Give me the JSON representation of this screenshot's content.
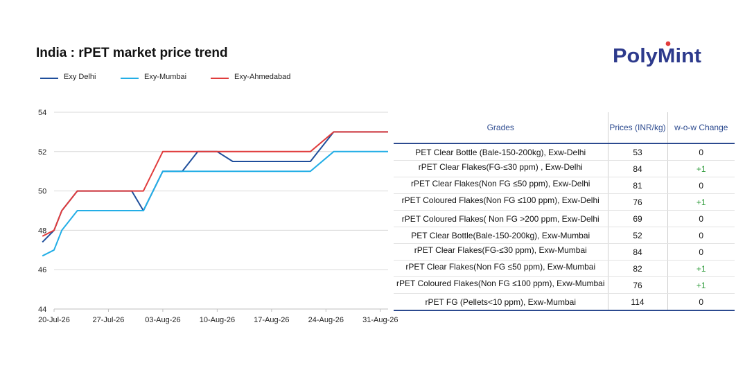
{
  "title": "India : rPET market price trend",
  "logo": {
    "text_left": "Poly",
    "text_right": "Mint",
    "color": "#2d3a8c",
    "accent": "#e23b3b"
  },
  "legend": [
    {
      "name": "Exy Delhi",
      "color": "#1f4e9b"
    },
    {
      "name": "Exy-Mumbai",
      "color": "#23aee6"
    },
    {
      "name": "Exy-Ahmedabad",
      "color": "#e03c3c"
    }
  ],
  "chart_data": {
    "type": "line",
    "title": "India : rPET market price trend",
    "xlabel": "",
    "ylabel": "",
    "ylim": [
      44,
      54
    ],
    "yticks": [
      44,
      46,
      48,
      50,
      52,
      54
    ],
    "xlim": [
      0,
      43
    ],
    "xticks": [
      {
        "x": 0,
        "label": "20-Jul-26"
      },
      {
        "x": 7,
        "label": "27-Jul-26"
      },
      {
        "x": 14,
        "label": "03-Aug-26"
      },
      {
        "x": 21,
        "label": "10-Aug-26"
      },
      {
        "x": 28,
        "label": "17-Aug-26"
      },
      {
        "x": 35,
        "label": "24-Aug-26"
      },
      {
        "x": 42,
        "label": "31-Aug-26"
      }
    ],
    "grid": "horizontal",
    "legend_position": "top-left",
    "series": [
      {
        "name": "Exy Delhi",
        "color": "#1f4e9b",
        "points": [
          [
            -1.5,
            47.4
          ],
          [
            0,
            48
          ],
          [
            1,
            49
          ],
          [
            3,
            50
          ],
          [
            10,
            50
          ],
          [
            11.5,
            49
          ],
          [
            14,
            51
          ],
          [
            16.5,
            51
          ],
          [
            18.5,
            52
          ],
          [
            21,
            52
          ],
          [
            23,
            51.5
          ],
          [
            33,
            51.5
          ],
          [
            36,
            53
          ],
          [
            43,
            53
          ]
        ]
      },
      {
        "name": "Exy-Mumbai",
        "color": "#23aee6",
        "points": [
          [
            -1.5,
            46.7
          ],
          [
            0,
            47
          ],
          [
            1,
            48
          ],
          [
            3,
            49
          ],
          [
            11.5,
            49
          ],
          [
            14,
            51
          ],
          [
            33,
            51
          ],
          [
            36,
            52
          ],
          [
            43,
            52
          ]
        ]
      },
      {
        "name": "Exy-Ahmedabad",
        "color": "#e03c3c",
        "points": [
          [
            -1.5,
            47.7
          ],
          [
            0,
            48
          ],
          [
            1,
            49
          ],
          [
            3,
            50
          ],
          [
            11.5,
            50
          ],
          [
            14,
            52
          ],
          [
            33,
            52
          ],
          [
            36,
            53
          ],
          [
            43,
            53
          ]
        ]
      }
    ]
  },
  "table": {
    "headers": [
      "Grades",
      "Prices (INR/kg)",
      "w-o-w Change"
    ],
    "rows": [
      {
        "grade": "PET Clear Bottle (Bale-150-200kg), Exw-Delhi",
        "price": "53",
        "change": "0"
      },
      {
        "grade": "rPET Clear Flakes(FG-≤30 ppm) , Exw-Delhi",
        "price": "84",
        "change": "+1"
      },
      {
        "grade": "rPET Clear Flakes(Non FG ≤50 ppm), Exw-Delhi",
        "price": "81",
        "change": "0"
      },
      {
        "grade": "rPET Coloured Flakes(Non FG  ≤100 ppm), Exw-Delhi",
        "price": "76",
        "change": "+1"
      },
      {
        "grade": "rPET Coloured Flakes( Non FG >200 ppm, Exw-Delhi",
        "price": "69",
        "change": "0"
      },
      {
        "grade": "PET Clear Bottle(Bale-150-200kg), Exw-Mumbai",
        "price": "52",
        "change": "0"
      },
      {
        "grade": "rPET Clear Flakes(FG-≤30 ppm), Exw-Mumbai",
        "price": "84",
        "change": "0"
      },
      {
        "grade": "rPET Clear Flakes(Non FG ≤50 ppm), Exw-Mumbai",
        "price": "82",
        "change": "+1"
      },
      {
        "grade": "rPET Coloured Flakes(Non FG  ≤100 ppm), Exw-Mumbai",
        "price": "76",
        "change": "+1"
      },
      {
        "grade": "rPET FG (Pellets<10 ppm), Exw-Mumbai",
        "price": "114",
        "change": "0"
      }
    ]
  }
}
